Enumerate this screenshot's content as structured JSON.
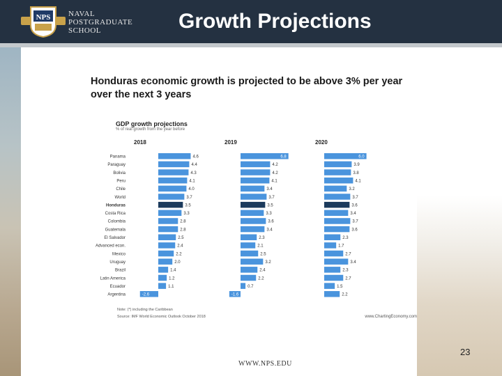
{
  "header": {
    "school_lines": [
      "NAVAL",
      "POSTGRADUATE",
      "SCHOOL"
    ],
    "logo_text": "NPS",
    "slide_title": "Growth Projections"
  },
  "slide": {
    "headline": "Honduras economic growth is projected to be above 3% per year over the next 3 years",
    "page_number": "23",
    "footer_url": "WWW.NPS.EDU"
  },
  "colors": {
    "bar": "#4a94dd",
    "highlight": "#1b3a5c",
    "header_bg": "#243141"
  },
  "chart_data": {
    "type": "bar",
    "orientation": "horizontal",
    "title": "GDP growth projections",
    "subtitle": "% of real growth from the year before",
    "categories": [
      "Panama",
      "Paraguay",
      "Bolivia",
      "Peru",
      "Chile",
      "World",
      "Honduras",
      "Costa Rica",
      "Colombia",
      "Guatemala",
      "El Salvador",
      "Advanced econ.",
      "Mexico",
      "Uruguay",
      "Brazil",
      "Latin America",
      "Ecuador",
      "Argentina"
    ],
    "highlight_category": "Honduras",
    "series": [
      {
        "name": "2018",
        "values": [
          4.6,
          4.4,
          4.3,
          4.1,
          4.0,
          3.7,
          3.5,
          3.3,
          2.8,
          2.8,
          2.5,
          2.4,
          2.2,
          2.0,
          1.4,
          1.2,
          1.1,
          -2.6
        ]
      },
      {
        "name": "2019",
        "values": [
          6.8,
          4.2,
          4.2,
          4.1,
          3.4,
          3.7,
          3.5,
          3.3,
          3.6,
          3.4,
          2.3,
          2.1,
          2.5,
          3.2,
          2.4,
          2.2,
          0.7,
          -1.6
        ]
      },
      {
        "name": "2020",
        "values": [
          6.0,
          3.9,
          3.8,
          4.1,
          3.2,
          3.7,
          3.6,
          3.4,
          3.7,
          3.6,
          2.3,
          1.7,
          2.7,
          3.4,
          2.3,
          2.7,
          1.5,
          2.2
        ]
      }
    ],
    "note": "Note: (*) including the Caribbean",
    "source": "Source: IMF World Economic Outlook October 2018",
    "credit": "www.ChartingEconomy.com"
  }
}
